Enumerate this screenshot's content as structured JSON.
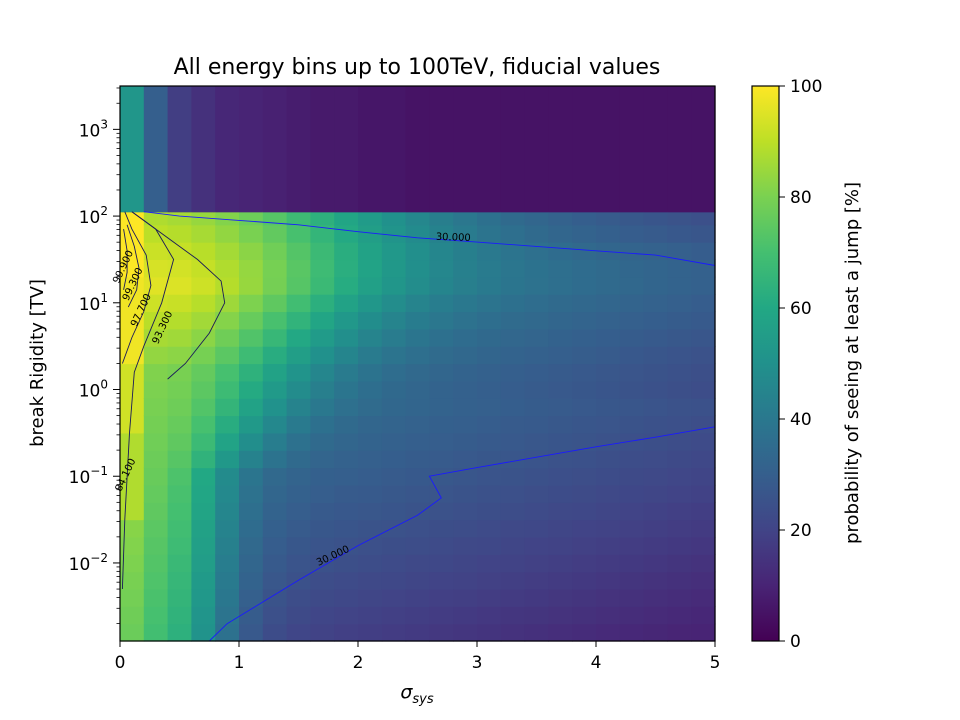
{
  "chart_data": {
    "type": "heatmap",
    "title": "All energy bins up to 100TeV, fiducial values",
    "xlabel_main": "σ",
    "xlabel_sub": "sys",
    "ylabel": "break Rigidity [TV]",
    "xlim": [
      0,
      5
    ],
    "ylim_log10": [
      -2.9,
      3.5
    ],
    "x_ticks": [
      {
        "value": 0,
        "label": "0"
      },
      {
        "value": 1,
        "label": "1"
      },
      {
        "value": 2,
        "label": "2"
      },
      {
        "value": 3,
        "label": "3"
      },
      {
        "value": 4,
        "label": "4"
      },
      {
        "value": 5,
        "label": "5"
      }
    ],
    "y_ticks": [
      {
        "exp": -2,
        "base": "10",
        "sup": "−2"
      },
      {
        "exp": -1,
        "base": "10",
        "sup": "−1"
      },
      {
        "exp": 0,
        "base": "10",
        "sup": "0"
      },
      {
        "exp": 1,
        "base": "10",
        "sup": "1"
      },
      {
        "exp": 2,
        "base": "10",
        "sup": "2"
      },
      {
        "exp": 3,
        "base": "10",
        "sup": "3"
      }
    ],
    "colorbar": {
      "label": "probability of seeing at least a jump [%]",
      "min": 0,
      "max": 100,
      "ticks": [
        {
          "value": 0,
          "label": "0"
        },
        {
          "value": 20,
          "label": "20"
        },
        {
          "value": 40,
          "label": "40"
        },
        {
          "value": 60,
          "label": "60"
        },
        {
          "value": 80,
          "label": "80"
        },
        {
          "value": 100,
          "label": "100"
        }
      ],
      "colormap": "viridis"
    },
    "x_bins": [
      0,
      0.2,
      0.4,
      0.6,
      0.8,
      1.0,
      1.2,
      1.4,
      1.6,
      1.8,
      2.0,
      2.2,
      2.4,
      2.6,
      2.8,
      3.0,
      3.2,
      3.4,
      3.6,
      3.8,
      4.0,
      4.2,
      4.4,
      4.6,
      4.8,
      5.0
    ],
    "y_bins_log10": [
      -2.9,
      -2.7,
      -2.5,
      -2.3,
      -2.1,
      -1.9,
      -1.7,
      -1.5,
      -1.3,
      -1.1,
      -0.9,
      -0.7,
      -0.5,
      -0.3,
      -0.1,
      0.1,
      0.3,
      0.5,
      0.7,
      0.9,
      1.1,
      1.3,
      1.5,
      1.7,
      1.9,
      2.05,
      3.5
    ],
    "upper_band_values": [
      52,
      30,
      18,
      14,
      11,
      10,
      9,
      8,
      7,
      7,
      6,
      6,
      5,
      5,
      5,
      5,
      5,
      5,
      5,
      5,
      5,
      5,
      5,
      5,
      5
    ],
    "contours": [
      {
        "label": "30.000",
        "level": 30,
        "segments": [
          {
            "points": [
              [
                0.2,
                2.05
              ],
              [
                0.5,
                2.0
              ],
              [
                1.0,
                1.95
              ],
              [
                1.5,
                1.9
              ],
              [
                2.0,
                1.82
              ],
              [
                2.5,
                1.75
              ],
              [
                3.0,
                1.7
              ],
              [
                3.5,
                1.65
              ],
              [
                4.0,
                1.6
              ],
              [
                4.5,
                1.55
              ],
              [
                5.0,
                1.43
              ]
            ],
            "label_at": [
              2.8,
              1.72
            ]
          },
          {
            "points": [
              [
                0.75,
                -2.9
              ],
              [
                0.9,
                -2.7
              ],
              [
                1.2,
                -2.45
              ],
              [
                1.5,
                -2.2
              ],
              [
                2.0,
                -1.8
              ],
              [
                2.5,
                -1.45
              ],
              [
                2.7,
                -1.25
              ],
              [
                2.6,
                -1.0
              ],
              [
                3.0,
                -0.9
              ],
              [
                3.5,
                -0.78
              ],
              [
                4.0,
                -0.66
              ],
              [
                4.5,
                -0.55
              ],
              [
                5.0,
                -0.43
              ]
            ],
            "label_at": [
              1.8,
              -1.95
            ]
          }
        ]
      },
      {
        "label": "84.100",
        "level": 84.1,
        "segments": [
          {
            "points": [
              [
                0.02,
                -2.3
              ],
              [
                0.04,
                -1.5
              ],
              [
                0.08,
                -0.5
              ],
              [
                0.12,
                0.2
              ],
              [
                0.2,
                0.5
              ],
              [
                0.35,
                1.0
              ],
              [
                0.45,
                1.5
              ],
              [
                0.3,
                1.85
              ],
              [
                0.1,
                2.05
              ]
            ],
            "label_at": [
              0.07,
              -1.0
            ]
          }
        ]
      },
      {
        "label": "93.300",
        "level": 93.3,
        "segments": [
          {
            "points": [
              [
                0.4,
                0.12
              ],
              [
                0.55,
                0.3
              ],
              [
                0.75,
                0.65
              ],
              [
                0.88,
                1.0
              ],
              [
                0.85,
                1.25
              ],
              [
                0.65,
                1.5
              ],
              [
                0.4,
                1.75
              ],
              [
                0.1,
                2.05
              ]
            ],
            "label_at": [
              0.38,
              0.7
            ]
          }
        ]
      },
      {
        "label": "97.700",
        "level": 97.7,
        "segments": [
          {
            "points": [
              [
                0.02,
                0.3
              ],
              [
                0.1,
                0.6
              ],
              [
                0.2,
                0.9
              ],
              [
                0.26,
                1.2
              ],
              [
                0.22,
                1.55
              ],
              [
                0.1,
                1.85
              ],
              [
                0.04,
                2.05
              ]
            ],
            "label_at": [
              0.2,
              0.9
            ]
          }
        ]
      },
      {
        "label": "99.300",
        "level": 99.3,
        "segments": [
          {
            "points": [
              [
                0.07,
                0.95
              ],
              [
                0.14,
                1.15
              ],
              [
                0.16,
                1.4
              ],
              [
                0.12,
                1.65
              ],
              [
                0.06,
                1.9
              ]
            ],
            "label_at": [
              0.13,
              1.2
            ]
          }
        ]
      },
      {
        "label": "99.900",
        "level": 99.9,
        "segments": [
          {
            "points": [
              [
                0.03,
                1.15
              ],
              [
                0.06,
                1.35
              ],
              [
                0.06,
                1.6
              ],
              [
                0.03,
                1.85
              ]
            ],
            "label_at": [
              0.05,
              1.4
            ]
          }
        ]
      }
    ]
  }
}
